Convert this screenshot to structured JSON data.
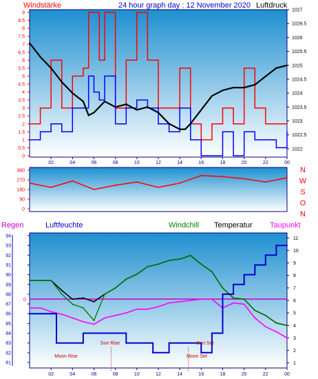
{
  "header": {
    "left_label": "Windstärke",
    "title": "24 hour graph day : 12 November 2020",
    "right_label": "Luftdruck"
  },
  "colors": {
    "background_top": "#1e8fd0",
    "background_bottom": "#ffffff",
    "wind_red": "#ff0000",
    "wind_blue": "#0000ff",
    "pressure": "#000000",
    "regen": "#cc00cc",
    "luftfeuchte": "#0000cc",
    "windchill": "#008000",
    "temperatur": "#000000",
    "taupunkt": "#ff00ff",
    "frame": "#000080",
    "direction": "#ff0000",
    "marker": "#cc0000"
  },
  "direction_letters": [
    "N",
    "W",
    "S",
    "O",
    "N"
  ],
  "legend2": {
    "regen": "Regen",
    "luftfeuchte": "Luftfeuchte",
    "windchill": "Windchill",
    "temperatur": "Temperatur",
    "taupunkt": "Taupunkt"
  },
  "chart_data": [
    {
      "type": "line",
      "title": "24 hour graph day : 12 November 2020",
      "x_ticks": [
        "02",
        "04",
        "06",
        "08",
        "10",
        "12",
        "14",
        "16",
        "18",
        "20",
        "22",
        "00"
      ],
      "left_axis": {
        "label": "Windstärke",
        "ticks": [
          "0",
          "0.5",
          "1",
          "1.5",
          "2",
          "2.5",
          "3",
          "3.5",
          "4",
          "4.5",
          "5",
          "5.5",
          "6",
          "6.5",
          "7",
          "7.5",
          "8",
          "8.5",
          "9"
        ],
        "range": [
          0,
          9
        ]
      },
      "right_axis": {
        "label": "Luftdruck",
        "ticks": [
          "1022",
          "1022.5",
          "1023",
          "1023.5",
          "1024",
          "1024.5",
          "1025",
          "1025.5",
          "1026",
          "1026.5",
          "1027"
        ],
        "range": [
          1021.7,
          1027
        ]
      },
      "series": [
        {
          "name": "Luftdruck",
          "x": [
            0,
            1,
            2,
            3,
            4,
            5,
            5.5,
            6,
            7,
            8,
            9,
            10,
            11,
            12,
            13,
            14,
            14.5,
            15,
            16,
            17,
            18,
            19,
            20,
            21,
            22,
            23,
            24
          ],
          "values": [
            1025.8,
            1025.3,
            1024.9,
            1024.4,
            1024.0,
            1023.7,
            1023.2,
            1023.3,
            1023.7,
            1023.5,
            1023.6,
            1023.4,
            1023.5,
            1023.3,
            1022.9,
            1022.7,
            1022.7,
            1022.9,
            1023.4,
            1023.9,
            1024.1,
            1024.2,
            1024.2,
            1024.3,
            1024.6,
            1024.9,
            1025.0
          ]
        },
        {
          "name": "Windstärke (Böen)",
          "x": [
            0,
            1,
            2,
            3,
            4,
            5,
            5.5,
            6,
            6.5,
            7,
            8,
            9,
            10,
            11,
            12,
            13,
            14,
            15,
            16,
            17,
            18,
            19,
            20,
            21,
            22,
            23,
            24
          ],
          "values": [
            2,
            3,
            6,
            3,
            5,
            5.5,
            9,
            9,
            6,
            9,
            3,
            6,
            9,
            6,
            3,
            3,
            5.5,
            2,
            1,
            2,
            3,
            2,
            5.5,
            3,
            2,
            2,
            2
          ]
        },
        {
          "name": "Windstärke (Mittel)",
          "x": [
            0,
            1,
            2,
            3,
            4,
            5,
            5.5,
            6,
            6.5,
            7,
            8,
            9,
            10,
            11,
            12,
            13,
            14,
            15,
            16,
            17,
            18,
            19,
            20,
            21,
            22,
            23,
            24
          ],
          "values": [
            1,
            1.5,
            2,
            1.5,
            3,
            3,
            5,
            4,
            3.5,
            5,
            2,
            3,
            3.5,
            3,
            2,
            1.5,
            3,
            1,
            0,
            0,
            1.5,
            0,
            1.5,
            1,
            1,
            0.5,
            1.5
          ]
        }
      ]
    },
    {
      "type": "line",
      "x_ticks": [
        "02",
        "04",
        "06",
        "08",
        "10",
        "12",
        "14",
        "16",
        "18",
        "20",
        "22",
        "00"
      ],
      "y_ticks": [
        "0",
        "90",
        "180",
        "270",
        "360"
      ],
      "range": [
        0,
        360
      ],
      "series": [
        {
          "name": "Windrichtung",
          "x": [
            0,
            2,
            4,
            6,
            8,
            10,
            12,
            14,
            16,
            18,
            20,
            22,
            24
          ],
          "values": [
            240,
            200,
            260,
            180,
            220,
            250,
            200,
            240,
            310,
            300,
            280,
            250,
            290
          ]
        }
      ]
    },
    {
      "type": "line",
      "x_ticks": [
        "02",
        "04",
        "06",
        "08",
        "10",
        "12",
        "14",
        "16",
        "18",
        "20",
        "22",
        "00"
      ],
      "left_axis": {
        "label": "Luftfeuchte",
        "ticks": [
          "81",
          "82",
          "83",
          "84",
          "85",
          "86",
          "87",
          "88",
          "89",
          "90",
          "91",
          "92",
          "93",
          "94"
        ],
        "range": [
          81,
          94
        ]
      },
      "right_axis": {
        "label": "Temperatur",
        "ticks": [
          "1",
          "2",
          "3",
          "4",
          "5",
          "6",
          "7",
          "8",
          "9",
          "10",
          "11"
        ],
        "range": [
          0.6,
          11.4
        ]
      },
      "regen_marker": "0",
      "annotations": [
        "Sun Rise",
        "Moon Rise",
        "Sun Set",
        "Moon Set"
      ],
      "series": [
        {
          "name": "Temperatur",
          "x": [
            0,
            1,
            2,
            3,
            4,
            5,
            6,
            7,
            8,
            9,
            10,
            11,
            12,
            13,
            14,
            15,
            16,
            17,
            18,
            19,
            20,
            21,
            22,
            23,
            24
          ],
          "values": [
            7.6,
            7.6,
            7.6,
            6.8,
            6.1,
            6.2,
            5.9,
            6.5,
            7.0,
            7.7,
            8.1,
            8.7,
            8.9,
            9.2,
            9.3,
            9.6,
            8.9,
            8.3,
            7.0,
            6.2,
            6.1,
            5.2,
            4.8,
            4.2,
            4.0
          ]
        },
        {
          "name": "Windchill",
          "x": [
            0,
            1,
            2,
            3,
            4,
            5,
            6,
            7,
            8,
            9,
            10,
            11,
            12,
            13,
            14,
            15,
            16,
            17,
            18,
            19,
            20,
            21,
            22,
            23,
            24
          ],
          "values": [
            7.6,
            7.6,
            7.6,
            6.5,
            5.7,
            5.4,
            4.4,
            6.5,
            7.0,
            7.7,
            8.1,
            8.7,
            8.9,
            9.2,
            9.3,
            9.6,
            8.9,
            8.3,
            7.0,
            6.2,
            6.1,
            5.2,
            4.8,
            4.2,
            4.0
          ]
        },
        {
          "name": "Taupunkt",
          "x": [
            0,
            1,
            2,
            3,
            4,
            5,
            6,
            7,
            8,
            9,
            10,
            11,
            12,
            13,
            14,
            15,
            16,
            17,
            18,
            19,
            20,
            21,
            22,
            23,
            24
          ],
          "values": [
            5.4,
            5.4,
            5.1,
            4.9,
            4.6,
            4.3,
            4.1,
            4.6,
            4.8,
            5.0,
            5.3,
            5.3,
            5.5,
            5.8,
            5.9,
            6.0,
            6.1,
            6.1,
            5.4,
            5.8,
            5.7,
            4.6,
            3.9,
            3.5,
            3.0
          ]
        },
        {
          "name": "Luftfeuchte",
          "x": [
            0,
            2,
            2.5,
            5,
            6.2,
            6.8,
            9,
            11,
            11.5,
            13,
            14,
            15,
            16,
            17,
            18,
            19,
            20,
            21,
            22,
            23,
            24
          ],
          "values": [
            86,
            86,
            83,
            84,
            84,
            84,
            83,
            83,
            82,
            83,
            83,
            83,
            82,
            84,
            88,
            89,
            90,
            91,
            92,
            93,
            93
          ]
        }
      ]
    }
  ]
}
